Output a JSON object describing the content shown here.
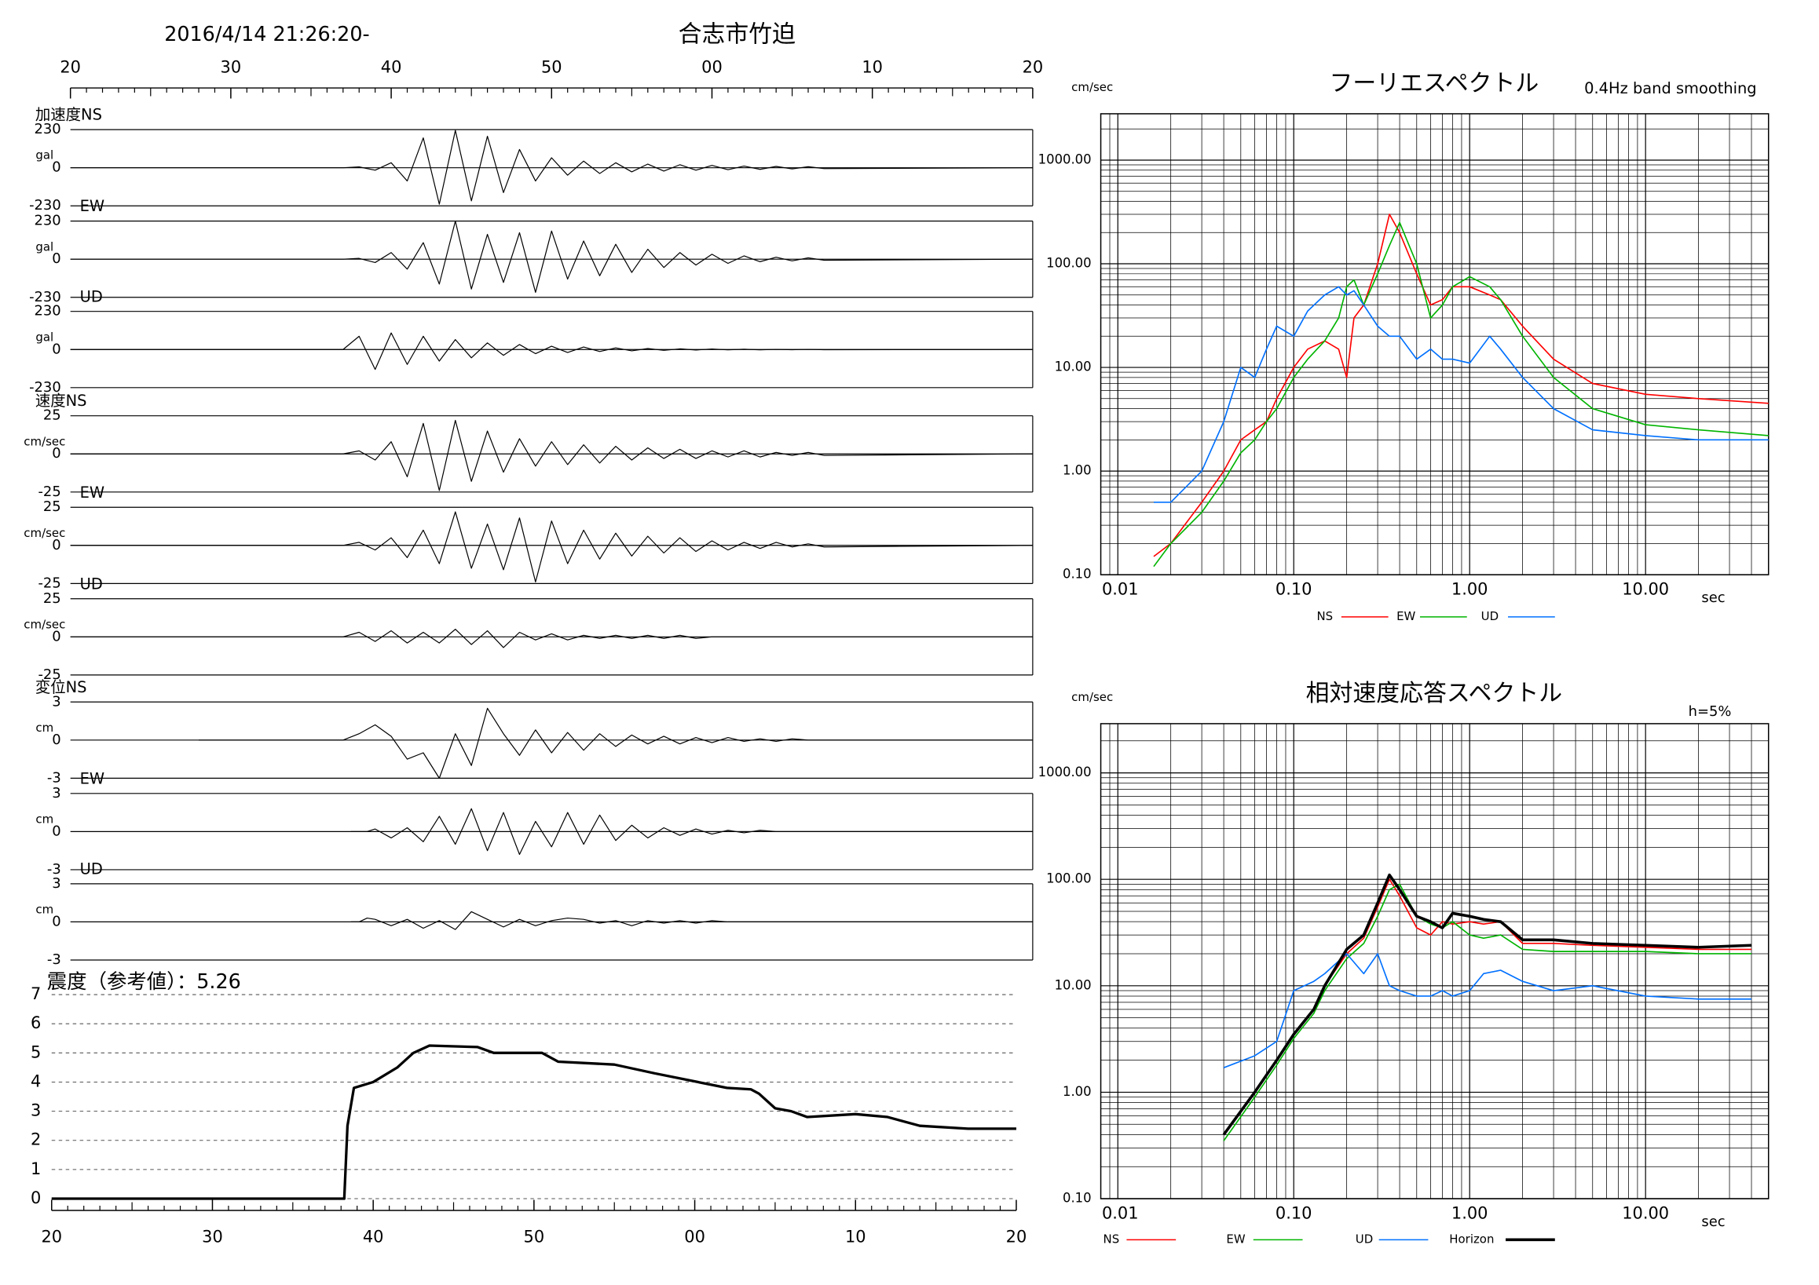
{
  "header": {
    "datetime": "2016/4/14 21:26:20-",
    "station": "合志市竹迫"
  },
  "chart_data": [
    {
      "type": "line",
      "label": "加速度NS",
      "unit": "gal",
      "color": "#000000",
      "xlim": [
        0,
        60
      ],
      "xticks": [
        {
          "value": 0,
          "label": "20"
        },
        {
          "value": 10,
          "label": "30"
        },
        {
          "value": 20,
          "label": "40"
        },
        {
          "value": 30,
          "label": "50"
        },
        {
          "value": 40,
          "label": "00"
        },
        {
          "value": 50,
          "label": "10"
        },
        {
          "value": 60,
          "label": "20"
        }
      ],
      "ylim": [
        -230,
        230
      ],
      "yticks": [
        -230,
        0,
        230
      ],
      "x": [
        0,
        17,
        18,
        19,
        20,
        21,
        22,
        23,
        24,
        25,
        26,
        27,
        28,
        29,
        30,
        31,
        32,
        33,
        34,
        35,
        36,
        37,
        38,
        39,
        40,
        41,
        42,
        43,
        44,
        45,
        46,
        47,
        60
      ],
      "values": [
        0,
        0,
        5,
        -15,
        30,
        -80,
        180,
        -220,
        225,
        -200,
        190,
        -150,
        110,
        -80,
        60,
        -45,
        40,
        -35,
        30,
        -25,
        22,
        -20,
        18,
        -15,
        14,
        -12,
        10,
        -10,
        8,
        -7,
        6,
        -5,
        0
      ]
    },
    {
      "type": "line",
      "label": "EW",
      "unit": "gal",
      "color": "#000000",
      "ylim": [
        -230,
        230
      ],
      "yticks": [
        -230,
        0,
        230
      ],
      "x": [
        0,
        17,
        18,
        19,
        20,
        21,
        22,
        23,
        24,
        25,
        26,
        27,
        28,
        29,
        30,
        31,
        32,
        33,
        34,
        35,
        36,
        37,
        38,
        39,
        40,
        41,
        42,
        43,
        44,
        45,
        46,
        47,
        60
      ],
      "values": [
        0,
        0,
        5,
        -20,
        40,
        -60,
        100,
        -150,
        230,
        -180,
        150,
        -140,
        160,
        -200,
        170,
        -120,
        110,
        -100,
        90,
        -80,
        60,
        -50,
        40,
        -35,
        30,
        -25,
        20,
        -15,
        12,
        -10,
        8,
        -6,
        0
      ]
    },
    {
      "type": "line",
      "label": "UD",
      "unit": "gal",
      "color": "#000000",
      "ylim": [
        -230,
        230
      ],
      "yticks": [
        -230,
        0,
        230
      ],
      "x": [
        0,
        17,
        18,
        19,
        20,
        21,
        22,
        23,
        24,
        25,
        26,
        27,
        28,
        29,
        30,
        31,
        32,
        33,
        34,
        35,
        36,
        37,
        38,
        39,
        40,
        41,
        42,
        43,
        44,
        45,
        46,
        47,
        60
      ],
      "values": [
        0,
        0,
        80,
        -120,
        100,
        -90,
        80,
        -70,
        60,
        -50,
        40,
        -35,
        30,
        -25,
        20,
        -18,
        15,
        -12,
        10,
        -8,
        6,
        -5,
        4,
        -3,
        3,
        -2,
        2,
        -2,
        1,
        -1,
        1,
        -1,
        0
      ]
    },
    {
      "type": "line",
      "label": "速度NS",
      "unit": "cm/sec",
      "color": "#000000",
      "ylim": [
        -25,
        25
      ],
      "yticks": [
        -25,
        0,
        25
      ],
      "x": [
        0,
        17,
        18,
        19,
        20,
        21,
        22,
        23,
        24,
        25,
        26,
        27,
        28,
        29,
        30,
        31,
        32,
        33,
        34,
        35,
        36,
        37,
        38,
        39,
        40,
        41,
        42,
        43,
        44,
        45,
        46,
        47,
        60
      ],
      "values": [
        0,
        0,
        2,
        -4,
        8,
        -15,
        20,
        -24,
        22,
        -18,
        15,
        -12,
        10,
        -8,
        8,
        -7,
        6,
        -6,
        5,
        -4,
        4,
        -3,
        3,
        -3,
        2,
        -2,
        2,
        -2,
        1,
        -1,
        1,
        -1,
        0
      ]
    },
    {
      "type": "line",
      "label": "EW",
      "unit": "cm/sec",
      "color": "#000000",
      "ylim": [
        -25,
        25
      ],
      "yticks": [
        -25,
        0,
        25
      ],
      "x": [
        0,
        17,
        18,
        19,
        20,
        21,
        22,
        23,
        24,
        25,
        26,
        27,
        28,
        29,
        30,
        31,
        32,
        33,
        34,
        35,
        36,
        37,
        38,
        39,
        40,
        41,
        42,
        43,
        44,
        45,
        46,
        47,
        60
      ],
      "values": [
        0,
        0,
        2,
        -3,
        5,
        -8,
        10,
        -12,
        22,
        -15,
        14,
        -16,
        18,
        -24,
        16,
        -12,
        10,
        -9,
        8,
        -7,
        6,
        -5,
        5,
        -4,
        3,
        -3,
        2,
        -2,
        2,
        -1,
        1,
        -1,
        0
      ]
    },
    {
      "type": "line",
      "label": "UD",
      "unit": "cm/sec",
      "color": "#000000",
      "ylim": [
        -25,
        25
      ],
      "yticks": [
        -25,
        0,
        25
      ],
      "x": [
        0,
        17,
        18,
        19,
        20,
        21,
        22,
        23,
        24,
        25,
        26,
        27,
        28,
        29,
        30,
        31,
        32,
        33,
        34,
        35,
        36,
        37,
        38,
        39,
        40,
        41,
        42,
        43,
        44,
        45,
        46,
        47,
        60
      ],
      "values": [
        0,
        0,
        3,
        -3,
        4,
        -4,
        3,
        -4,
        5,
        -5,
        4,
        -7,
        3,
        -2,
        2,
        -2,
        1,
        -1,
        1,
        -1,
        1,
        -1,
        1,
        -1,
        0,
        0,
        0,
        0,
        0,
        0,
        0,
        0,
        0
      ]
    },
    {
      "type": "line",
      "label": "変位NS",
      "unit": "cm",
      "color": "#000000",
      "ylim": [
        -3,
        3
      ],
      "yticks": [
        -3,
        0,
        3
      ],
      "x": [
        8,
        17,
        18,
        19,
        20,
        21,
        22,
        23,
        24,
        25,
        26,
        27,
        28,
        29,
        30,
        31,
        32,
        33,
        34,
        35,
        36,
        37,
        38,
        39,
        40,
        41,
        42,
        43,
        44,
        45,
        46,
        47,
        60
      ],
      "values": [
        0,
        0,
        0.5,
        1.2,
        0.3,
        -1.5,
        -1,
        -3,
        0.5,
        -2,
        2.5,
        0.5,
        -1.2,
        0.8,
        -1,
        0.6,
        -0.8,
        0.5,
        -0.5,
        0.4,
        -0.3,
        0.3,
        -0.3,
        0.2,
        -0.2,
        0.2,
        -0.1,
        0.1,
        -0.1,
        0.1,
        0,
        0,
        0
      ]
    },
    {
      "type": "line",
      "label": "EW",
      "unit": "cm",
      "color": "#000000",
      "ylim": [
        -3,
        3
      ],
      "yticks": [
        -3,
        0,
        3
      ],
      "x": [
        18,
        17.5,
        18.5,
        19,
        20,
        21,
        22,
        23,
        24,
        25,
        26,
        27,
        28,
        29,
        30,
        31,
        32,
        33,
        34,
        35,
        36,
        37,
        38,
        39,
        40,
        41,
        42,
        43,
        44,
        45,
        46,
        47,
        60
      ],
      "values": [
        0,
        0,
        0,
        0.2,
        -0.5,
        0.3,
        -0.8,
        1.2,
        -1,
        1.8,
        -1.5,
        1.5,
        -1.8,
        0.8,
        -1.2,
        1.5,
        -1,
        1.3,
        -0.7,
        0.5,
        -0.5,
        0.3,
        -0.3,
        0.2,
        -0.2,
        0.1,
        -0.1,
        0.1,
        0,
        0,
        0,
        0,
        0
      ]
    },
    {
      "type": "line",
      "label": "UD",
      "unit": "cm",
      "color": "#000000",
      "ylim": [
        -3,
        3
      ],
      "yticks": [
        -3,
        0,
        3
      ],
      "x": [
        17.5,
        18,
        18.5,
        19,
        20,
        21,
        22,
        23,
        24,
        25,
        26,
        27,
        28,
        29,
        30,
        31,
        32,
        33,
        34,
        35,
        36,
        37,
        38,
        39,
        40,
        41,
        42,
        43,
        44,
        45,
        46,
        47,
        60
      ],
      "values": [
        0,
        0,
        0.3,
        0.2,
        -0.3,
        0.2,
        -0.5,
        0.1,
        -0.6,
        0.8,
        0.2,
        -0.4,
        0.2,
        -0.3,
        0.1,
        0.3,
        0.2,
        -0.1,
        0.1,
        -0.3,
        0.1,
        -0.1,
        0.1,
        -0.1,
        0.1,
        0,
        0,
        0,
        0,
        0,
        0,
        0,
        0
      ]
    },
    {
      "type": "line",
      "title": "震度（参考値）：5.26",
      "color": "#000000",
      "grid": "dashed",
      "xlim": [
        0,
        60
      ],
      "xticks": [
        {
          "value": 0,
          "label": "20"
        },
        {
          "value": 10,
          "label": "30"
        },
        {
          "value": 20,
          "label": "40"
        },
        {
          "value": 30,
          "label": "50"
        },
        {
          "value": 40,
          "label": "00"
        },
        {
          "value": 50,
          "label": "10"
        },
        {
          "value": 60,
          "label": "20"
        }
      ],
      "ylim": [
        0,
        7
      ],
      "yticks": [
        0,
        1,
        2,
        3,
        4,
        5,
        6,
        7
      ],
      "x": [
        0,
        18.2,
        18.4,
        18.8,
        20,
        21.5,
        22.5,
        23.5,
        26.5,
        27.5,
        30.5,
        31.5,
        35,
        37.5,
        42,
        43.5,
        44,
        45,
        46,
        47,
        50,
        52,
        54,
        57,
        60
      ],
      "values": [
        0,
        0,
        2.5,
        3.8,
        4.0,
        4.5,
        5.0,
        5.25,
        5.2,
        5.0,
        5.0,
        4.7,
        4.6,
        4.3,
        3.8,
        3.75,
        3.6,
        3.1,
        3.0,
        2.8,
        2.9,
        2.8,
        2.5,
        2.4,
        2.4
      ]
    },
    {
      "type": "line",
      "title": "フーリエスペクトル",
      "subtitle": "0.4Hz band smoothing",
      "y_label": "cm/sec",
      "x_label": "sec",
      "log_scale": true,
      "grid": true,
      "xlim": [
        0.008,
        50
      ],
      "xticks": [
        0.01,
        {
          "value": 0.1,
          "label": "0.10"
        },
        {
          "value": 1,
          "label": "1.00"
        },
        {
          "value": 10,
          "label": "10.00"
        }
      ],
      "ylim": [
        0.1,
        2800
      ],
      "yticks": [
        {
          "value": 0.1,
          "label": "0.10"
        },
        {
          "value": 1,
          "label": "1.00"
        },
        {
          "value": 10,
          "label": "10.00"
        },
        {
          "value": 100,
          "label": "100.00"
        },
        {
          "value": 1000,
          "label": "1000.00"
        }
      ],
      "x": [
        0.016,
        0.02,
        0.03,
        0.04,
        0.05,
        0.06,
        0.07,
        0.08,
        0.1,
        0.12,
        0.15,
        0.18,
        0.2,
        0.22,
        0.25,
        0.3,
        0.35,
        0.4,
        0.5,
        0.6,
        0.7,
        0.8,
        1.0,
        1.3,
        1.5,
        2,
        3,
        5,
        10,
        20,
        50
      ],
      "series": [
        {
          "name": "NS",
          "color": "#ff0000",
          "values": [
            0.15,
            0.2,
            0.5,
            1,
            2,
            2.5,
            3,
            5,
            10,
            15,
            18,
            15,
            8,
            30,
            40,
            100,
            300,
            200,
            80,
            40,
            45,
            60,
            60,
            50,
            45,
            25,
            12,
            7,
            5.5,
            5,
            4.5
          ]
        },
        {
          "name": "EW",
          "color": "#00b400",
          "values": [
            0.12,
            0.2,
            0.4,
            0.8,
            1.5,
            2,
            3,
            4,
            8,
            12,
            18,
            30,
            60,
            70,
            40,
            80,
            150,
            250,
            100,
            30,
            40,
            60,
            75,
            60,
            45,
            20,
            8,
            4,
            2.8,
            2.5,
            2.2
          ]
        },
        {
          "name": "UD",
          "color": "#0070ff",
          "values": [
            0.5,
            0.5,
            1,
            3,
            10,
            8,
            15,
            25,
            20,
            35,
            50,
            60,
            50,
            55,
            40,
            25,
            20,
            20,
            12,
            15,
            12,
            12,
            11,
            20,
            15,
            8,
            4,
            2.5,
            2.2,
            2,
            2
          ]
        }
      ]
    },
    {
      "type": "line",
      "title": "相対速度応答スペクトル",
      "annotation": "h=5%",
      "y_label": "cm/sec",
      "x_label": "sec",
      "log_scale": true,
      "grid": true,
      "xlim": [
        0.008,
        50
      ],
      "xticks": [
        0.01,
        {
          "value": 0.1,
          "label": "0.10"
        },
        {
          "value": 1,
          "label": "1.00"
        },
        {
          "value": 10,
          "label": "10.00"
        }
      ],
      "ylim": [
        0.1,
        2900
      ],
      "yticks": [
        {
          "value": 0.1,
          "label": "0.10"
        },
        {
          "value": 1,
          "label": "1.00"
        },
        {
          "value": 10,
          "label": "10.00"
        },
        {
          "value": 100,
          "label": "100.00"
        },
        {
          "value": 1000,
          "label": "1000.00"
        }
      ],
      "x": [
        0.04,
        0.06,
        0.08,
        0.1,
        0.13,
        0.15,
        0.2,
        0.25,
        0.3,
        0.35,
        0.4,
        0.5,
        0.6,
        0.7,
        0.8,
        1.0,
        1.2,
        1.5,
        2,
        3,
        5,
        10,
        20,
        40
      ],
      "series": [
        {
          "name": "NS",
          "color": "#ff0000",
          "values": [
            0.4,
            1,
            2,
            3.5,
            6,
            10,
            20,
            28,
            55,
            100,
            70,
            35,
            30,
            40,
            38,
            40,
            38,
            40,
            25,
            25,
            24,
            23,
            22,
            22
          ]
        },
        {
          "name": "EW",
          "color": "#00b400",
          "values": [
            0.35,
            0.9,
            1.8,
            3.2,
            5.5,
            9,
            18,
            25,
            45,
            80,
            90,
            45,
            38,
            35,
            40,
            30,
            28,
            30,
            22,
            21,
            21,
            21,
            20,
            20
          ]
        },
        {
          "name": "UD",
          "color": "#0070ff",
          "values": [
            1.7,
            2.2,
            3,
            9,
            11,
            13,
            20,
            13,
            20,
            10,
            9,
            8,
            8,
            9,
            8,
            9,
            13,
            14,
            11,
            9,
            10,
            8,
            7.5,
            7.5
          ]
        },
        {
          "name": "Horizon",
          "color": "#000000",
          "values": [
            0.4,
            1,
            2,
            3.5,
            6,
            10,
            22,
            30,
            60,
            110,
            80,
            45,
            40,
            35,
            48,
            45,
            42,
            40,
            27,
            27,
            25,
            24,
            23,
            24
          ]
        }
      ]
    }
  ]
}
